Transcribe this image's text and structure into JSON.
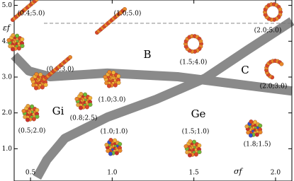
{
  "chart_data": {
    "type": "phase-diagram",
    "xlabel": "σf",
    "ylabel": "εf",
    "xlim": [
      0.4,
      2.1
    ],
    "ylim": [
      0.1,
      5.15
    ],
    "xticks": [
      0.5,
      {
        "value": 1,
        "label": "1.0"
      },
      1.5,
      {
        "value": 2,
        "label": "2.0"
      }
    ],
    "yticks": [
      {
        "value": 1,
        "label": "1.0"
      },
      {
        "value": 2,
        "label": "2.0"
      },
      {
        "value": 3,
        "label": "3.0"
      },
      {
        "value": 4,
        "label": "4.0"
      },
      {
        "value": 5,
        "label": "5.0"
      }
    ],
    "hline": 4.5,
    "boundaries": [
      {
        "color": "#8a8a8a",
        "x": [
          0.4,
          0.49,
          0.62,
          0.97,
          1.4,
          1.75,
          2.1
        ],
        "y": [
          3.6,
          3.17,
          3.01,
          3.11,
          3.01,
          2.81,
          2.61
        ]
      },
      {
        "color": "#8a8a8a",
        "x": [
          0.54,
          0.6,
          0.71,
          0.97,
          1.27,
          1.57,
          1.83,
          2.1
        ],
        "y": [
          0.2,
          0.69,
          1.29,
          1.88,
          2.38,
          2.97,
          3.76,
          4.56
        ]
      }
    ],
    "phases": [
      "B",
      "C",
      "Gi",
      "Ge"
    ],
    "snapshots": [
      "(0.4;5.0)",
      "(1.0;5.0)",
      "(2.0;5.0)",
      "(0.6;3.0)",
      "(1.5;4.0)",
      "(1.0;3.0)",
      "(0.8;2.5)",
      "(2.0;3.0)",
      "(0.5;2.0)",
      "(1.0;1.0)",
      "(1.5;1.0)",
      "(1.8;1.5)"
    ]
  }
}
